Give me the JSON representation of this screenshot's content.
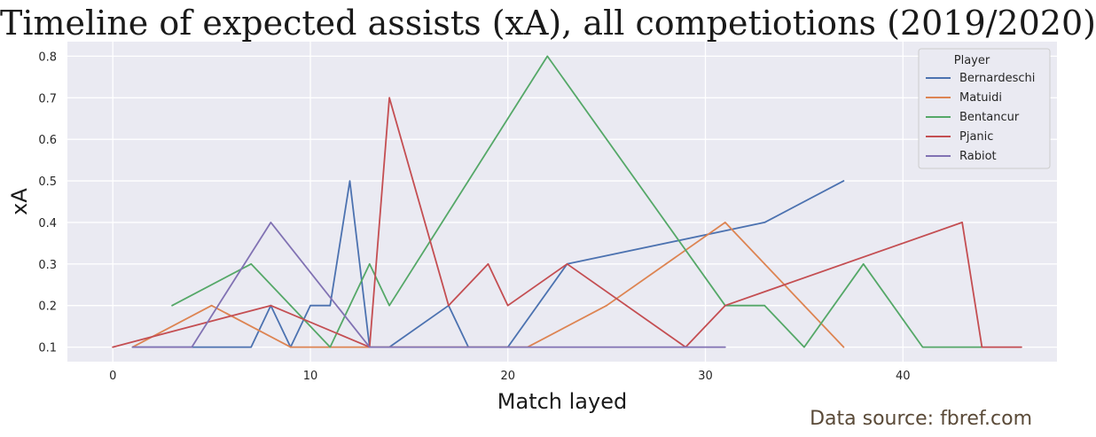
{
  "chart_data": {
    "type": "line",
    "title": "Timeline of expected assists (xA), all competiotions (2019/2020)",
    "xlabel": "Match layed",
    "ylabel": "xA",
    "xlim": [
      -2.3,
      47.8
    ],
    "ylim": [
      0.065,
      0.835
    ],
    "x_ticks": [
      0,
      10,
      20,
      30,
      40
    ],
    "y_ticks": [
      0.1,
      0.2,
      0.3,
      0.4,
      0.5,
      0.6,
      0.7,
      0.8
    ],
    "grid": true,
    "legend_title": "Player",
    "legend_position": "top-right",
    "series": [
      {
        "name": "Bernardeschi",
        "color": "#4c72b0",
        "x": [
          1,
          2,
          7,
          8,
          9,
          10,
          11,
          12,
          13,
          14,
          17,
          18,
          20,
          23,
          33,
          37
        ],
        "y": [
          0.1,
          0.1,
          0.1,
          0.2,
          0.1,
          0.2,
          0.2,
          0.5,
          0.1,
          0.1,
          0.2,
          0.1,
          0.1,
          0.3,
          0.4,
          0.5
        ]
      },
      {
        "name": "Matuidi",
        "color": "#dd8452",
        "x": [
          1,
          5,
          9,
          13,
          21,
          25,
          31,
          37
        ],
        "y": [
          0.1,
          0.2,
          0.1,
          0.1,
          0.1,
          0.2,
          0.4,
          0.1
        ]
      },
      {
        "name": "Bentancur",
        "color": "#55a868",
        "x": [
          3,
          7,
          11,
          13,
          14,
          22,
          31,
          33,
          35,
          38,
          41,
          44
        ],
        "y": [
          0.2,
          0.3,
          0.1,
          0.3,
          0.2,
          0.8,
          0.2,
          0.2,
          0.1,
          0.3,
          0.1,
          0.1
        ]
      },
      {
        "name": "Pjanic",
        "color": "#c44e52",
        "x": [
          0,
          8,
          13,
          14,
          17,
          19,
          20,
          23,
          29,
          31,
          43,
          44,
          46
        ],
        "y": [
          0.1,
          0.2,
          0.1,
          0.7,
          0.2,
          0.3,
          0.2,
          0.3,
          0.1,
          0.2,
          0.4,
          0.1,
          0.1
        ]
      },
      {
        "name": "Rabiot",
        "color": "#8172b3",
        "x": [
          1,
          4,
          8,
          13,
          31
        ],
        "y": [
          0.1,
          0.1,
          0.4,
          0.1,
          0.1
        ]
      }
    ]
  },
  "footer": {
    "source": "Data source: fbref.com"
  }
}
